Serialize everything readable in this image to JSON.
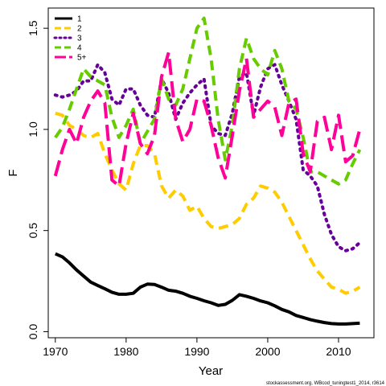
{
  "chart_data": {
    "type": "line",
    "xlabel": "Year",
    "ylabel": "F",
    "xlim": [
      1969,
      2015
    ],
    "ylim": [
      -0.03,
      1.6
    ],
    "x_ticks": [
      1970,
      1980,
      1990,
      2000,
      2010
    ],
    "y_ticks": [
      0.0,
      0.5,
      1.0,
      1.5
    ],
    "y_tick_labels": [
      "0.0",
      "0.5",
      "1.0",
      "1.5"
    ],
    "legend_position": "top-left",
    "caption": "stockassessment.org, WBcod_tuningtest1_2014, r3614",
    "x": [
      1970,
      1971,
      1972,
      1973,
      1974,
      1975,
      1976,
      1977,
      1978,
      1979,
      1980,
      1981,
      1982,
      1983,
      1984,
      1985,
      1986,
      1987,
      1988,
      1989,
      1990,
      1991,
      1992,
      1993,
      1994,
      1995,
      1996,
      1997,
      1998,
      1999,
      2000,
      2001,
      2002,
      2003,
      2004,
      2005,
      2006,
      2007,
      2008,
      2009,
      2010,
      2011,
      2012,
      2013
    ],
    "series": [
      {
        "name": "1",
        "color": "#000000",
        "dash": "solid",
        "width": 4,
        "values": [
          0.385,
          0.37,
          0.34,
          0.305,
          0.275,
          0.245,
          0.228,
          0.212,
          0.195,
          0.185,
          0.185,
          0.19,
          0.22,
          0.235,
          0.233,
          0.22,
          0.205,
          0.2,
          0.19,
          0.175,
          0.165,
          0.153,
          0.143,
          0.13,
          0.135,
          0.155,
          0.183,
          0.175,
          0.165,
          0.152,
          0.143,
          0.128,
          0.11,
          0.098,
          0.08,
          0.07,
          0.06,
          0.052,
          0.045,
          0.04,
          0.038,
          0.038,
          0.04,
          0.042
        ]
      },
      {
        "name": "2",
        "color": "#FFCC00",
        "dash": "dashed",
        "width": 4,
        "values": [
          1.08,
          1.07,
          1.02,
          1.0,
          0.97,
          0.96,
          0.98,
          0.88,
          0.8,
          0.73,
          0.7,
          0.83,
          0.92,
          0.92,
          0.88,
          0.72,
          0.66,
          0.7,
          0.67,
          0.6,
          0.62,
          0.56,
          0.52,
          0.51,
          0.52,
          0.53,
          0.56,
          0.63,
          0.66,
          0.72,
          0.71,
          0.69,
          0.64,
          0.57,
          0.5,
          0.43,
          0.36,
          0.3,
          0.26,
          0.22,
          0.21,
          0.19,
          0.2,
          0.22
        ]
      },
      {
        "name": "3",
        "color": "#660099",
        "dash": "dotted",
        "width": 4,
        "values": [
          1.17,
          1.16,
          1.17,
          1.19,
          1.24,
          1.24,
          1.32,
          1.28,
          1.15,
          1.12,
          1.2,
          1.2,
          1.12,
          1.07,
          1.06,
          1.25,
          1.18,
          1.05,
          1.13,
          1.18,
          1.22,
          1.25,
          1.02,
          0.98,
          0.97,
          1.08,
          1.26,
          1.28,
          1.07,
          1.21,
          1.3,
          1.32,
          1.22,
          1.14,
          1.05,
          0.8,
          0.77,
          0.72,
          0.58,
          0.48,
          0.42,
          0.4,
          0.41,
          0.44
        ]
      },
      {
        "name": "4",
        "color": "#66CC00",
        "dash": "dashed",
        "width": 4,
        "values": [
          0.96,
          1.01,
          1.1,
          1.2,
          1.3,
          1.26,
          1.24,
          1.22,
          1.06,
          0.96,
          1.02,
          1.1,
          0.93,
          0.99,
          1.05,
          1.25,
          1.15,
          1.12,
          1.2,
          1.35,
          1.5,
          1.55,
          1.35,
          1.05,
          0.85,
          1.02,
          1.3,
          1.45,
          1.35,
          1.3,
          1.27,
          1.39,
          1.3,
          1.14,
          1.1,
          0.96,
          0.79,
          0.79,
          0.77,
          0.75,
          0.73,
          0.75,
          0.83,
          0.9
        ]
      },
      {
        "name": "5+",
        "color": "#FF0099",
        "dash": "longdash",
        "width": 4,
        "values": [
          0.77,
          0.9,
          1.0,
          0.93,
          1.06,
          1.14,
          1.19,
          1.13,
          0.75,
          0.72,
          0.93,
          1.08,
          0.93,
          0.88,
          0.97,
          1.26,
          1.38,
          1.05,
          0.94,
          1.0,
          1.15,
          1.14,
          1.02,
          0.86,
          0.76,
          0.97,
          1.19,
          1.35,
          1.06,
          1.1,
          1.14,
          1.11,
          0.97,
          1.13,
          1.15,
          0.88,
          0.79,
          1.04,
          1.06,
          0.9,
          1.07,
          0.84,
          0.87,
          1.0
        ]
      }
    ]
  }
}
